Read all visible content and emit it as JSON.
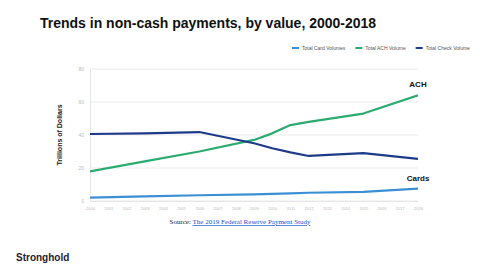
{
  "chart_data": {
    "type": "line",
    "title": "Trends in non-cash payments, by value, 2000-2018",
    "y_label": "Trillions of Dollars",
    "x": [
      2000,
      2003,
      2006,
      2009,
      2010,
      2011,
      2012,
      2015,
      2018
    ],
    "series": [
      {
        "name": "Total Card Volumes",
        "color": "#3b8fd4",
        "values": [
          2,
          2.8,
          3.5,
          4,
          4.3,
          4.6,
          5,
          5.5,
          7.5
        ]
      },
      {
        "name": "Total ACH Volume",
        "color": "#2bab6f",
        "values": [
          18,
          24,
          30,
          37,
          41,
          46,
          48,
          53,
          64
        ]
      },
      {
        "name": "Total Check Volume",
        "color": "#1d3b8a",
        "values": [
          40.6,
          41,
          41.8,
          35,
          32,
          29.5,
          27.3,
          29,
          25.5
        ]
      }
    ],
    "xlim": [
      2000,
      2018
    ],
    "xticks": [
      2000,
      2001,
      2002,
      2003,
      2004,
      2005,
      2006,
      2007,
      2008,
      2009,
      2010,
      2011,
      2012,
      2013,
      2014,
      2015,
      2016,
      2017,
      2018
    ],
    "ylim": [
      0,
      80
    ],
    "yticks": [
      0,
      20,
      40,
      60,
      80
    ],
    "grid": true,
    "legend": "top",
    "annotations": [
      "ACH",
      "Cards"
    ],
    "source": {
      "prefix": "Source:",
      "link": "The 2019 Federal Reserve Payment Study"
    },
    "logo": "Stronghold"
  }
}
